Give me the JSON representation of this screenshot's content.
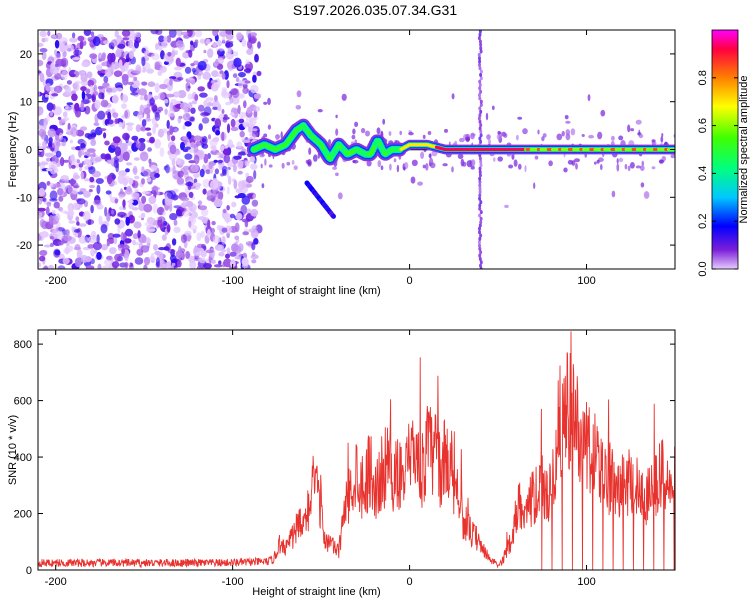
{
  "title": "S197.2026.035.07.34.G31",
  "chart_data": [
    {
      "type": "heatmap",
      "xlabel": "Height of straight line (km)",
      "ylabel": "Frequency (Hz)",
      "xlim": [
        -210,
        150
      ],
      "ylim": [
        -25,
        25
      ],
      "xticks": [
        -200,
        -100,
        0,
        100
      ],
      "yticks": [
        -20,
        -10,
        0,
        10,
        20
      ],
      "colorbar": {
        "label": "Normalized spectral amplitude",
        "range": [
          0,
          1
        ],
        "ticks": [
          "0.0",
          "0.2",
          "0.4",
          "0.6",
          "0.8"
        ],
        "ticks_values": [
          0,
          0.2,
          0.4,
          0.6,
          0.8
        ]
      },
      "features": [
        {
          "name": "noise-field",
          "x_range": [
            -210,
            -85
          ],
          "y_range": [
            -25,
            25
          ],
          "amplitude": 0.12
        },
        {
          "name": "ridge",
          "points": [
            [
              -88,
              0
            ],
            [
              -82,
              1
            ],
            [
              -76,
              0
            ],
            [
              -70,
              1
            ],
            [
              -64,
              4
            ],
            [
              -60,
              5
            ],
            [
              -56,
              3
            ],
            [
              -50,
              1
            ],
            [
              -45,
              -2
            ],
            [
              -40,
              1
            ],
            [
              -35,
              -1
            ],
            [
              -30,
              0
            ],
            [
              -25,
              -1
            ],
            [
              -22,
              -1
            ],
            [
              -18,
              2
            ],
            [
              -14,
              -1
            ],
            [
              -10,
              0
            ],
            [
              -5,
              0
            ],
            [
              0,
              1
            ],
            [
              10,
              1
            ],
            [
              20,
              0
            ],
            [
              40,
              0
            ],
            [
              80,
              0
            ],
            [
              150,
              0
            ]
          ]
        },
        {
          "name": "streak",
          "x_range": [
            -58,
            -43
          ],
          "y_range": [
            -14,
            -7
          ]
        },
        {
          "name": "vertical-line",
          "x": 40
        }
      ]
    },
    {
      "type": "line",
      "xlabel": "Height of straight line (km)",
      "ylabel": "SNR (10 * v/v)",
      "xlim": [
        -210,
        150
      ],
      "ylim": [
        0,
        850
      ],
      "xticks": [
        -200,
        -100,
        0,
        100
      ],
      "yticks": [
        0,
        200,
        400,
        600,
        800
      ],
      "color": "#e8322e",
      "x": [
        -210,
        -190,
        -170,
        -150,
        -130,
        -110,
        -90,
        -80,
        -77,
        -75,
        -73,
        -70,
        -66,
        -62,
        -60,
        -55,
        -50,
        -48,
        -45,
        -40,
        -38,
        -35,
        -30,
        -27,
        -25,
        -22,
        -20,
        -17,
        -15,
        -12,
        -10,
        -8,
        -5,
        -3,
        0,
        3,
        5,
        8,
        10,
        13,
        15,
        18,
        20,
        23,
        25,
        28,
        30,
        33,
        35,
        38,
        40,
        43,
        45,
        48,
        50,
        53,
        55,
        58,
        60,
        63,
        65,
        68,
        70,
        73,
        75,
        78,
        80,
        83,
        85,
        88,
        90,
        93,
        95,
        98,
        100,
        103,
        105,
        108,
        110,
        113,
        115,
        118,
        120,
        123,
        125,
        128,
        130,
        133,
        135,
        138,
        140,
        143,
        145,
        148,
        150
      ],
      "values": [
        25,
        25,
        25,
        25,
        25,
        25,
        28,
        30,
        40,
        70,
        110,
        90,
        130,
        180,
        150,
        320,
        260,
        120,
        100,
        70,
        180,
        270,
        380,
        330,
        330,
        410,
        290,
        340,
        380,
        420,
        330,
        350,
        390,
        320,
        420,
        430,
        450,
        360,
        470,
        440,
        450,
        380,
        420,
        430,
        330,
        300,
        200,
        160,
        140,
        120,
        90,
        70,
        40,
        30,
        15,
        40,
        80,
        130,
        210,
        260,
        240,
        270,
        270,
        300,
        320,
        280,
        300,
        480,
        560,
        600,
        640,
        560,
        540,
        490,
        470,
        430,
        440,
        380,
        380,
        350,
        380,
        330,
        350,
        330,
        360,
        320,
        300,
        280,
        290,
        330,
        350,
        360,
        330,
        300,
        350
      ]
    }
  ]
}
